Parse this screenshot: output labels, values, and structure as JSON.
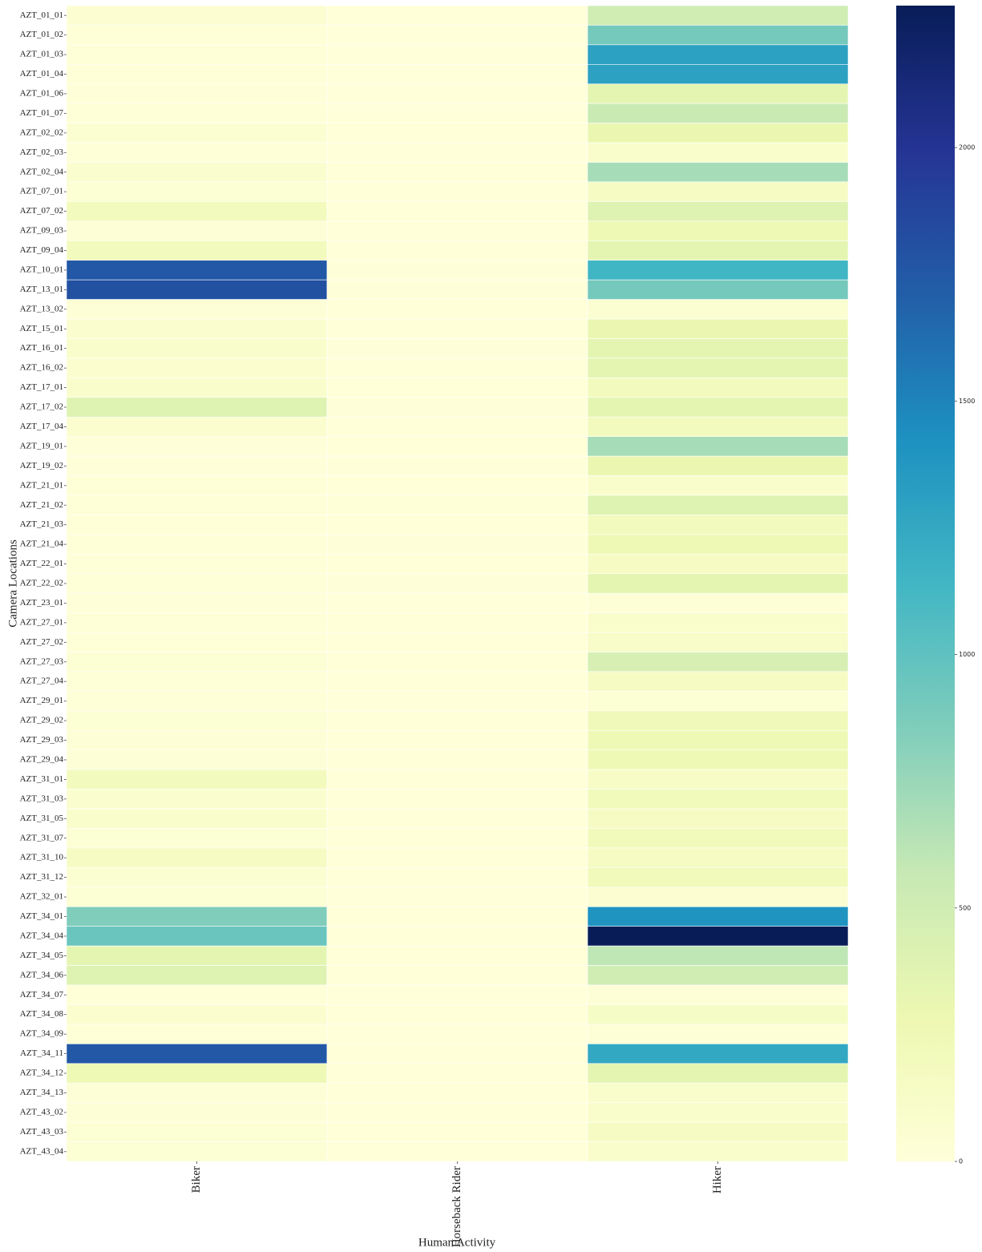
{
  "chart_data": {
    "type": "heatmap",
    "y_label": "Camera Locations",
    "x_label": "Human Activity",
    "colormap": "YlGnBu",
    "categories": [
      "AZT_01_01",
      "AZT_01_02",
      "AZT_01_03",
      "AZT_01_04",
      "AZT_01_06",
      "AZT_01_07",
      "AZT_02_02",
      "AZT_02_03",
      "AZT_02_04",
      "AZT_07_01",
      "AZT_07_02",
      "AZT_09_03",
      "AZT_09_04",
      "AZT_10_01",
      "AZT_13_01",
      "AZT_13_02",
      "AZT_15_01",
      "AZT_16_01",
      "AZT_16_02",
      "AZT_17_01",
      "AZT_17_02",
      "AZT_17_04",
      "AZT_19_01",
      "AZT_19_02",
      "AZT_21_01",
      "AZT_21_02",
      "AZT_21_03",
      "AZT_21_04",
      "AZT_22_01",
      "AZT_22_02",
      "AZT_23_01",
      "AZT_27_01",
      "AZT_27_02",
      "AZT_27_03",
      "AZT_27_04",
      "AZT_29_01",
      "AZT_29_02",
      "AZT_29_03",
      "AZT_29_04",
      "AZT_31_01",
      "AZT_31_03",
      "AZT_31_05",
      "AZT_31_07",
      "AZT_31_10",
      "AZT_31_12",
      "AZT_32_01",
      "AZT_34_01",
      "AZT_34_04",
      "AZT_34_05",
      "AZT_34_06",
      "AZT_34_07",
      "AZT_34_08",
      "AZT_34_09",
      "AZT_34_11",
      "AZT_34_12",
      "AZT_34_13",
      "AZT_43_02",
      "AZT_43_03",
      "AZT_43_04"
    ],
    "series": [
      {
        "name": "Biker",
        "values": [
          50,
          20,
          20,
          15,
          10,
          15,
          60,
          20,
          80,
          40,
          200,
          30,
          200,
          1750,
          1800,
          30,
          80,
          100,
          70,
          90,
          400,
          70,
          10,
          10,
          20,
          20,
          15,
          15,
          20,
          15,
          10,
          20,
          20,
          40,
          20,
          20,
          40,
          30,
          30,
          200,
          80,
          100,
          40,
          150,
          60,
          40,
          850,
          950,
          350,
          400,
          20,
          70,
          20,
          1750,
          250,
          30,
          30,
          40,
          40
        ]
      },
      {
        "name": "Horseback Rider",
        "values": [
          5,
          0,
          0,
          0,
          0,
          0,
          5,
          0,
          5,
          5,
          5,
          0,
          5,
          10,
          10,
          5,
          5,
          10,
          5,
          5,
          10,
          5,
          5,
          10,
          5,
          15,
          5,
          10,
          5,
          10,
          0,
          5,
          5,
          5,
          5,
          0,
          5,
          5,
          5,
          5,
          5,
          5,
          5,
          5,
          5,
          0,
          5,
          5,
          5,
          5,
          0,
          5,
          0,
          5,
          5,
          5,
          5,
          5,
          5
        ]
      },
      {
        "name": "Hiker",
        "values": [
          500,
          900,
          1300,
          1300,
          350,
          550,
          300,
          100,
          700,
          150,
          400,
          250,
          350,
          1150,
          900,
          60,
          300,
          350,
          350,
          200,
          350,
          200,
          700,
          300,
          100,
          400,
          200,
          250,
          150,
          350,
          30,
          100,
          120,
          450,
          150,
          40,
          230,
          250,
          250,
          130,
          220,
          150,
          220,
          160,
          220,
          50,
          1400,
          2280,
          600,
          500,
          30,
          140,
          30,
          1250,
          350,
          100,
          100,
          150,
          100
        ]
      }
    ],
    "clim": [
      0,
      2280
    ],
    "cticks": [
      0,
      500,
      1000,
      1500,
      2000
    ]
  }
}
